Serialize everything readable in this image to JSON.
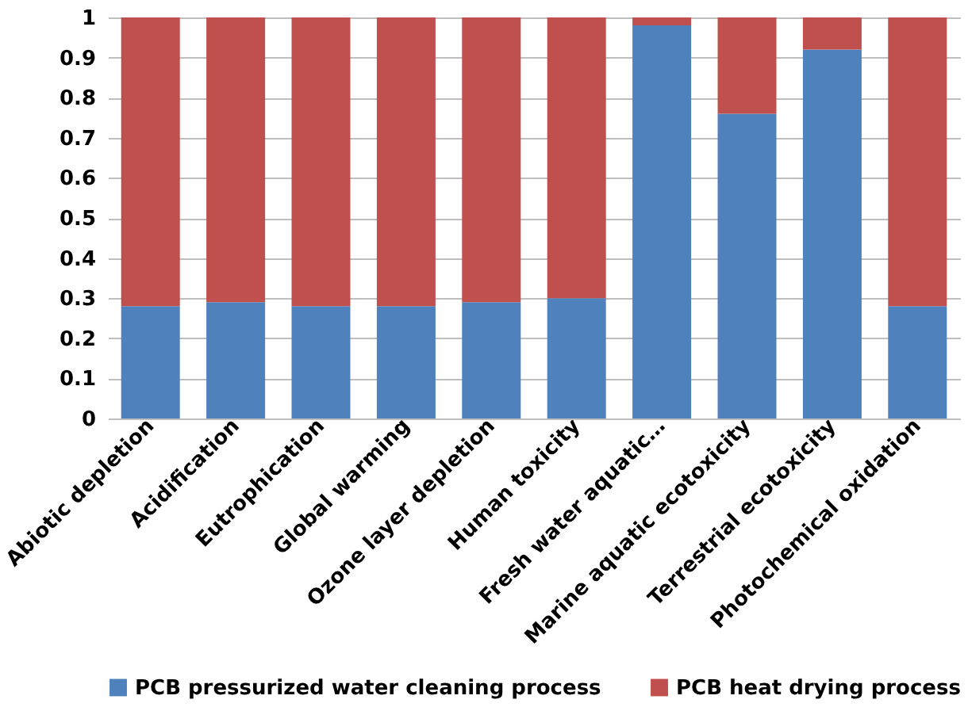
{
  "chart_data": {
    "type": "bar",
    "stacked": true,
    "categories": [
      "Abiotic depletion",
      "Acidification",
      "Eutrophication",
      "Global warming",
      "Ozone layer depletion",
      "Human toxicity",
      "Fresh water aquatic…",
      "Marine aquatic ecotoxicity",
      "Terrestrial ecotoxicity",
      "Photochemical oxidation"
    ],
    "series": [
      {
        "name": "PCB pressurized water cleaning process",
        "color": "#4f81bd",
        "values": [
          0.28,
          0.29,
          0.28,
          0.28,
          0.29,
          0.3,
          0.98,
          0.76,
          0.92,
          0.28
        ]
      },
      {
        "name": "PCB heat drying process",
        "color": "#c0504d",
        "values": [
          0.72,
          0.71,
          0.72,
          0.72,
          0.71,
          0.7,
          0.02,
          0.24,
          0.08,
          0.72
        ]
      }
    ],
    "ylim": [
      0,
      1
    ],
    "yticks": [
      0,
      0.1,
      0.2,
      0.3,
      0.4,
      0.5,
      0.6,
      0.7,
      0.8,
      0.9,
      1
    ],
    "grid": "y",
    "legend": "bottom"
  }
}
